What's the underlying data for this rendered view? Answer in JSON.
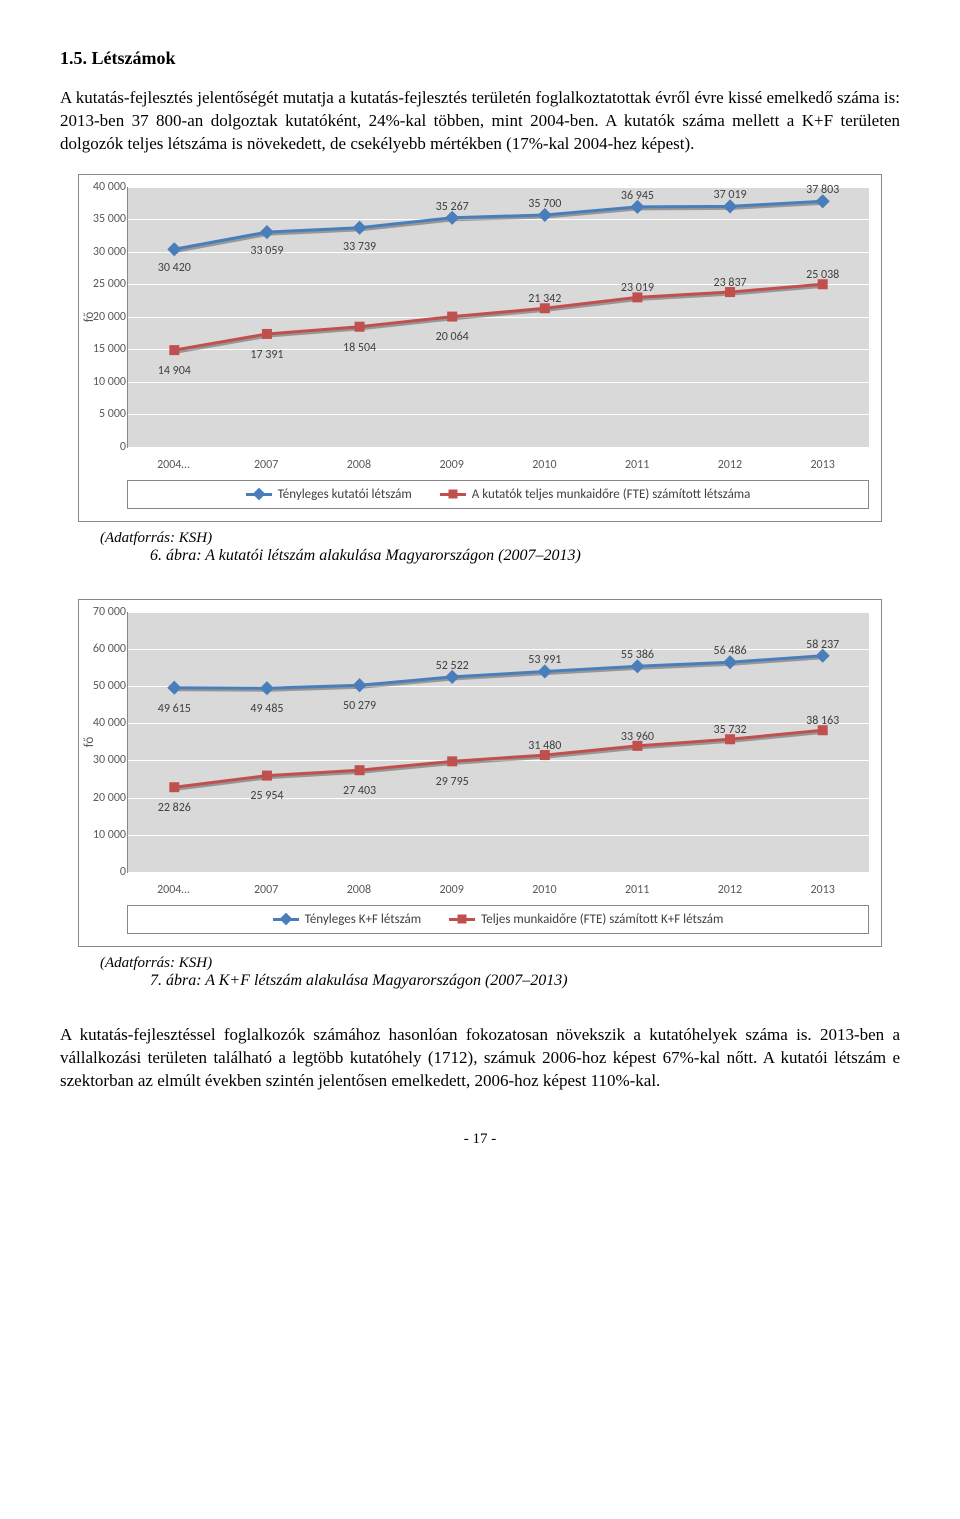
{
  "heading": "1.5.    Létszámok",
  "para1": "A kutatás-fejlesztés jelentőségét mutatja a kutatás-fejlesztés területén foglalkoztatottak évről évre kissé emelkedő száma is: 2013-ben 37 800-an dolgoztak kutatóként, 24%-kal többen, mint 2004-ben. A kutatók száma mellett a K+F területen dolgozók teljes létszáma is növekedett, de csekélyebb mértékben (17%-kal 2004-hez képest).",
  "para2": "A kutatás-fejlesztéssel foglalkozók számához hasonlóan fokozatosan növekszik a kutatóhelyek száma is. 2013-ben a vállalkozási területen található a legtöbb kutatóhely (1712), számuk 2006-hoz képest 67%-kal nőtt. A kutatói létszám e szektorban az elmúlt években szintén jelentősen emelkedett, 2006-hoz képest 110%-kal.",
  "footer": "- 17 -",
  "chart1": {
    "categories": [
      "2004…",
      "2007",
      "2008",
      "2009",
      "2010",
      "2011",
      "2012",
      "2013"
    ],
    "y_max": 40000,
    "y_step": 5000,
    "series": [
      {
        "name": "Tényleges kutatói létszám",
        "color": "#4a7ebb",
        "marker": "diamond",
        "values": [
          30420,
          33059,
          33739,
          35267,
          35700,
          36945,
          37019,
          37803
        ],
        "label_offset": [
          12,
          12,
          12,
          -18,
          -18,
          -18,
          -18,
          -18
        ]
      },
      {
        "name": "A kutatók teljes munkaidőre (FTE) számított létszáma",
        "color": "#c0504d",
        "marker": "square",
        "values": [
          14904,
          17391,
          18504,
          20064,
          21342,
          23019,
          23837,
          25038
        ],
        "label_offset": [
          14,
          14,
          14,
          14,
          -16,
          -16,
          -16,
          -16
        ]
      }
    ],
    "ylabel": "fő",
    "src": "(Adatforrás: KSH)",
    "caption": "6. ábra: A kutatói létszám alakulása Magyarországon (2007–2013)"
  },
  "chart2": {
    "categories": [
      "2004…",
      "2007",
      "2008",
      "2009",
      "2010",
      "2011",
      "2012",
      "2013"
    ],
    "y_max": 70000,
    "y_step": 10000,
    "series": [
      {
        "name": "Tényleges K+F létszám",
        "color": "#4a7ebb",
        "marker": "diamond",
        "values": [
          49615,
          49485,
          50279,
          52522,
          53991,
          55386,
          56486,
          58237
        ],
        "label_offset": [
          14,
          14,
          14,
          -18,
          -18,
          -18,
          -18,
          -18
        ]
      },
      {
        "name": "Teljes munkaidőre (FTE) számított K+F létszám",
        "color": "#c0504d",
        "marker": "square",
        "values": [
          22826,
          25954,
          27403,
          29795,
          31480,
          33960,
          35732,
          38163
        ],
        "label_offset": [
          14,
          14,
          14,
          14,
          -16,
          -16,
          -16,
          -16
        ]
      }
    ],
    "ylabel": "fő",
    "src": "(Adatforrás: KSH)",
    "caption": "7. ábra: A K+F létszám alakulása Magyarországon (2007–2013)"
  }
}
